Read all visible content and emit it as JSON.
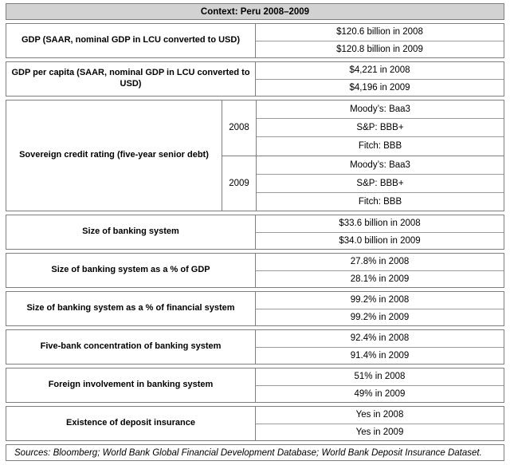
{
  "table": {
    "title": "Context: Peru 2008–2009",
    "sections": [
      {
        "label": "GDP (SAAR, nominal GDP in LCU converted to USD)",
        "values": [
          "$120.6 billion in 2008",
          "$120.8 billion in 2009"
        ]
      },
      {
        "label": "GDP per capita (SAAR, nominal GDP in LCU converted to USD)",
        "values": [
          "$4,221 in 2008",
          "$4,196 in 2009"
        ]
      },
      {
        "label": "Sovereign credit rating (five-year senior debt)",
        "groups": [
          {
            "year": "2008",
            "values": [
              "Moody’s: Baa3",
              "S&P: BBB+",
              "Fitch: BBB"
            ]
          },
          {
            "year": "2009",
            "values": [
              "Moody’s: Baa3",
              "S&P: BBB+",
              "Fitch: BBB"
            ]
          }
        ]
      },
      {
        "label": "Size of banking system",
        "values": [
          "$33.6 billion in 2008",
          "$34.0 billion in 2009"
        ]
      },
      {
        "label": "Size of banking system as a % of GDP",
        "values": [
          "27.8% in 2008",
          "28.1% in 2009"
        ]
      },
      {
        "label": "Size of banking system as a % of financial system",
        "values": [
          "99.2% in 2008",
          "99.2% in 2009"
        ]
      },
      {
        "label": "Five-bank concentration of banking system",
        "values": [
          "92.4% in 2008",
          "91.4% in 2009"
        ]
      },
      {
        "label": "Foreign involvement in banking system",
        "values": [
          "51% in 2008",
          "49% in 2009"
        ]
      },
      {
        "label": "Existence of deposit insurance",
        "values": [
          "Yes in 2008",
          "Yes in 2009"
        ]
      }
    ],
    "sources": "Sources: Bloomberg; World Bank Global Financial Development Database; World Bank Deposit Insurance Dataset.",
    "colors": {
      "header_bg": "#d2d2d2",
      "box_border": "#7e7e7e",
      "inner_divider": "#9b9b9b",
      "text": "#000000",
      "page_bg": "#ffffff"
    }
  }
}
